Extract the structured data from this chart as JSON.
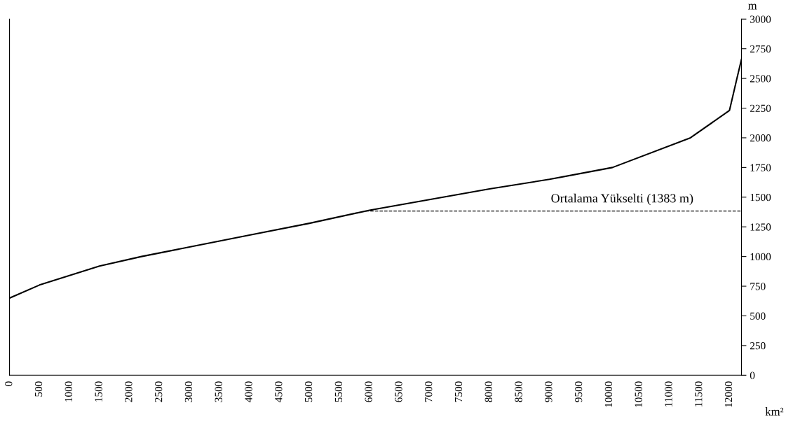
{
  "chart_data": {
    "type": "line",
    "xlabel": "km²",
    "ylabel": "m",
    "x": [
      0,
      500,
      1000,
      1500,
      2200,
      3000,
      4000,
      5000,
      6000,
      7000,
      8000,
      9000,
      10050,
      11350,
      12000,
      12120,
      12200
    ],
    "series": [
      {
        "color": "#000000",
        "values": [
          650,
          760,
          840,
          920,
          1000,
          1080,
          1180,
          1280,
          1390,
          1480,
          1570,
          1650,
          1750,
          2000,
          2230,
          2490,
          2660
        ]
      }
    ],
    "xlim": [
      0,
      12200
    ],
    "xticks": [
      0,
      500,
      1000,
      1500,
      2000,
      2500,
      3000,
      3500,
      4000,
      4500,
      5000,
      5500,
      6000,
      6500,
      7000,
      7500,
      8000,
      8500,
      9000,
      9500,
      10000,
      10500,
      11000,
      11500,
      12000
    ],
    "ylim": [
      0,
      3000
    ],
    "yticks": [
      0,
      250,
      500,
      750,
      1000,
      1250,
      1500,
      1750,
      2000,
      2250,
      2500,
      2750,
      3000
    ],
    "ref_lines": [
      {
        "axis": "y",
        "value": 1383,
        "label": "Ortalama Yükselti (1383 m)",
        "line_style": "dashed",
        "color": "#000000"
      }
    ],
    "grid": false,
    "legend": false,
    "marker": "none",
    "line_style": "solid"
  }
}
